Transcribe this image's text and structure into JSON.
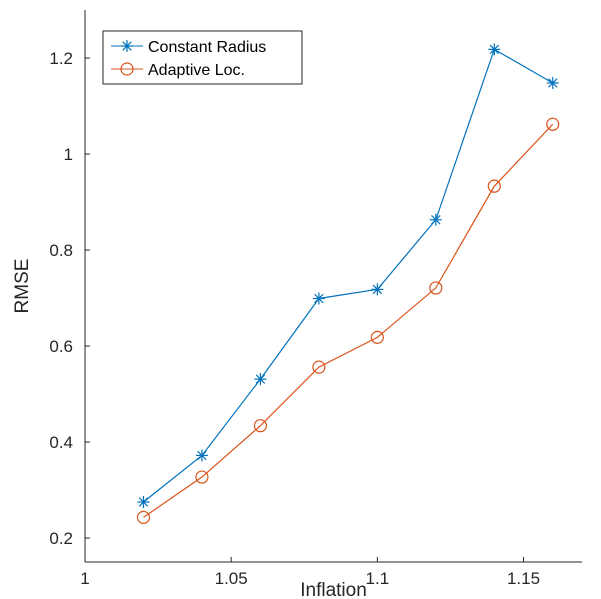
{
  "chart_data": {
    "type": "line",
    "title": "",
    "xlabel": "Inflation",
    "ylabel": "RMSE",
    "xlim": [
      1.0,
      1.17
    ],
    "ylim": [
      0.15,
      1.3
    ],
    "xticks": [
      1,
      1.05,
      1.1,
      1.15
    ],
    "xtick_labels": [
      "1",
      "1.05",
      "1.1",
      "1.15"
    ],
    "yticks": [
      0.2,
      0.4,
      0.6,
      0.8,
      1.0,
      1.2
    ],
    "ytick_labels": [
      "0.2",
      "0.4",
      "0.6",
      "0.8",
      "1",
      "1.2"
    ],
    "grid": false,
    "legend_position": "top-left",
    "x": [
      1.02,
      1.04,
      1.06,
      1.08,
      1.1,
      1.12,
      1.14,
      1.16
    ],
    "series": [
      {
        "name": "Constant Radius",
        "marker": "asterisk",
        "color": "#0072BD",
        "values": [
          0.275,
          0.372,
          0.531,
          0.699,
          0.718,
          0.863,
          1.218,
          1.148
        ]
      },
      {
        "name": "Adaptive Loc.",
        "marker": "circle",
        "color": "#D95319",
        "values": [
          0.243,
          0.327,
          0.434,
          0.556,
          0.618,
          0.721,
          0.933,
          1.062
        ]
      }
    ]
  }
}
